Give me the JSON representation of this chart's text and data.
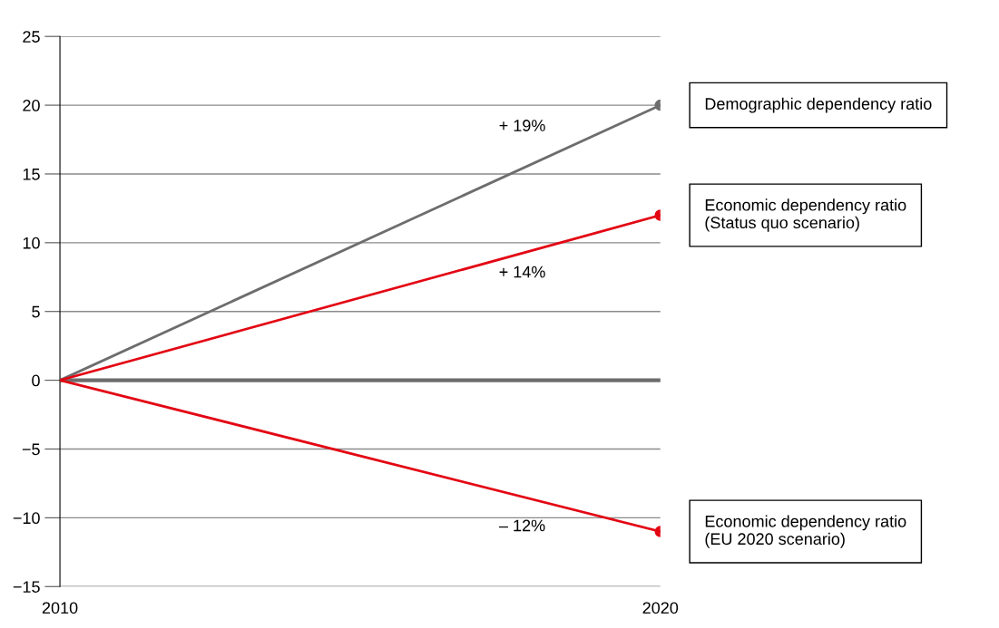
{
  "chart_data": {
    "type": "line",
    "x": [
      2010,
      2020
    ],
    "xlim": [
      2010,
      2020
    ],
    "xticks": [
      2010,
      2020
    ],
    "ylim": [
      -15,
      25
    ],
    "yticks": [
      {
        "value": -15,
        "label": "−15"
      },
      {
        "value": -10,
        "label": "−10"
      },
      {
        "value": -5,
        "label": "−5"
      },
      0,
      5,
      10,
      15,
      20,
      25
    ],
    "grid": "y",
    "marker": "circle",
    "line_style": "solid",
    "series": [
      {
        "name": "Demographic dependency ratio",
        "color": "#6d6d6d",
        "values": [
          0,
          20
        ]
      },
      {
        "name": "Economic dependency ratio\n(Status quo scenario)",
        "color": "#e30613",
        "values": [
          0,
          12
        ]
      },
      {
        "name": "Economic dependency ratio\n(EU 2020 scenario)",
        "color": "#e30613",
        "values": [
          0,
          -11
        ]
      }
    ],
    "ref_lines": [
      {
        "axis": "y",
        "value": 0,
        "color": "#6d6d6d"
      }
    ],
    "annotations": [
      "+ 19%",
      "+ 14%",
      "– 12%"
    ]
  }
}
